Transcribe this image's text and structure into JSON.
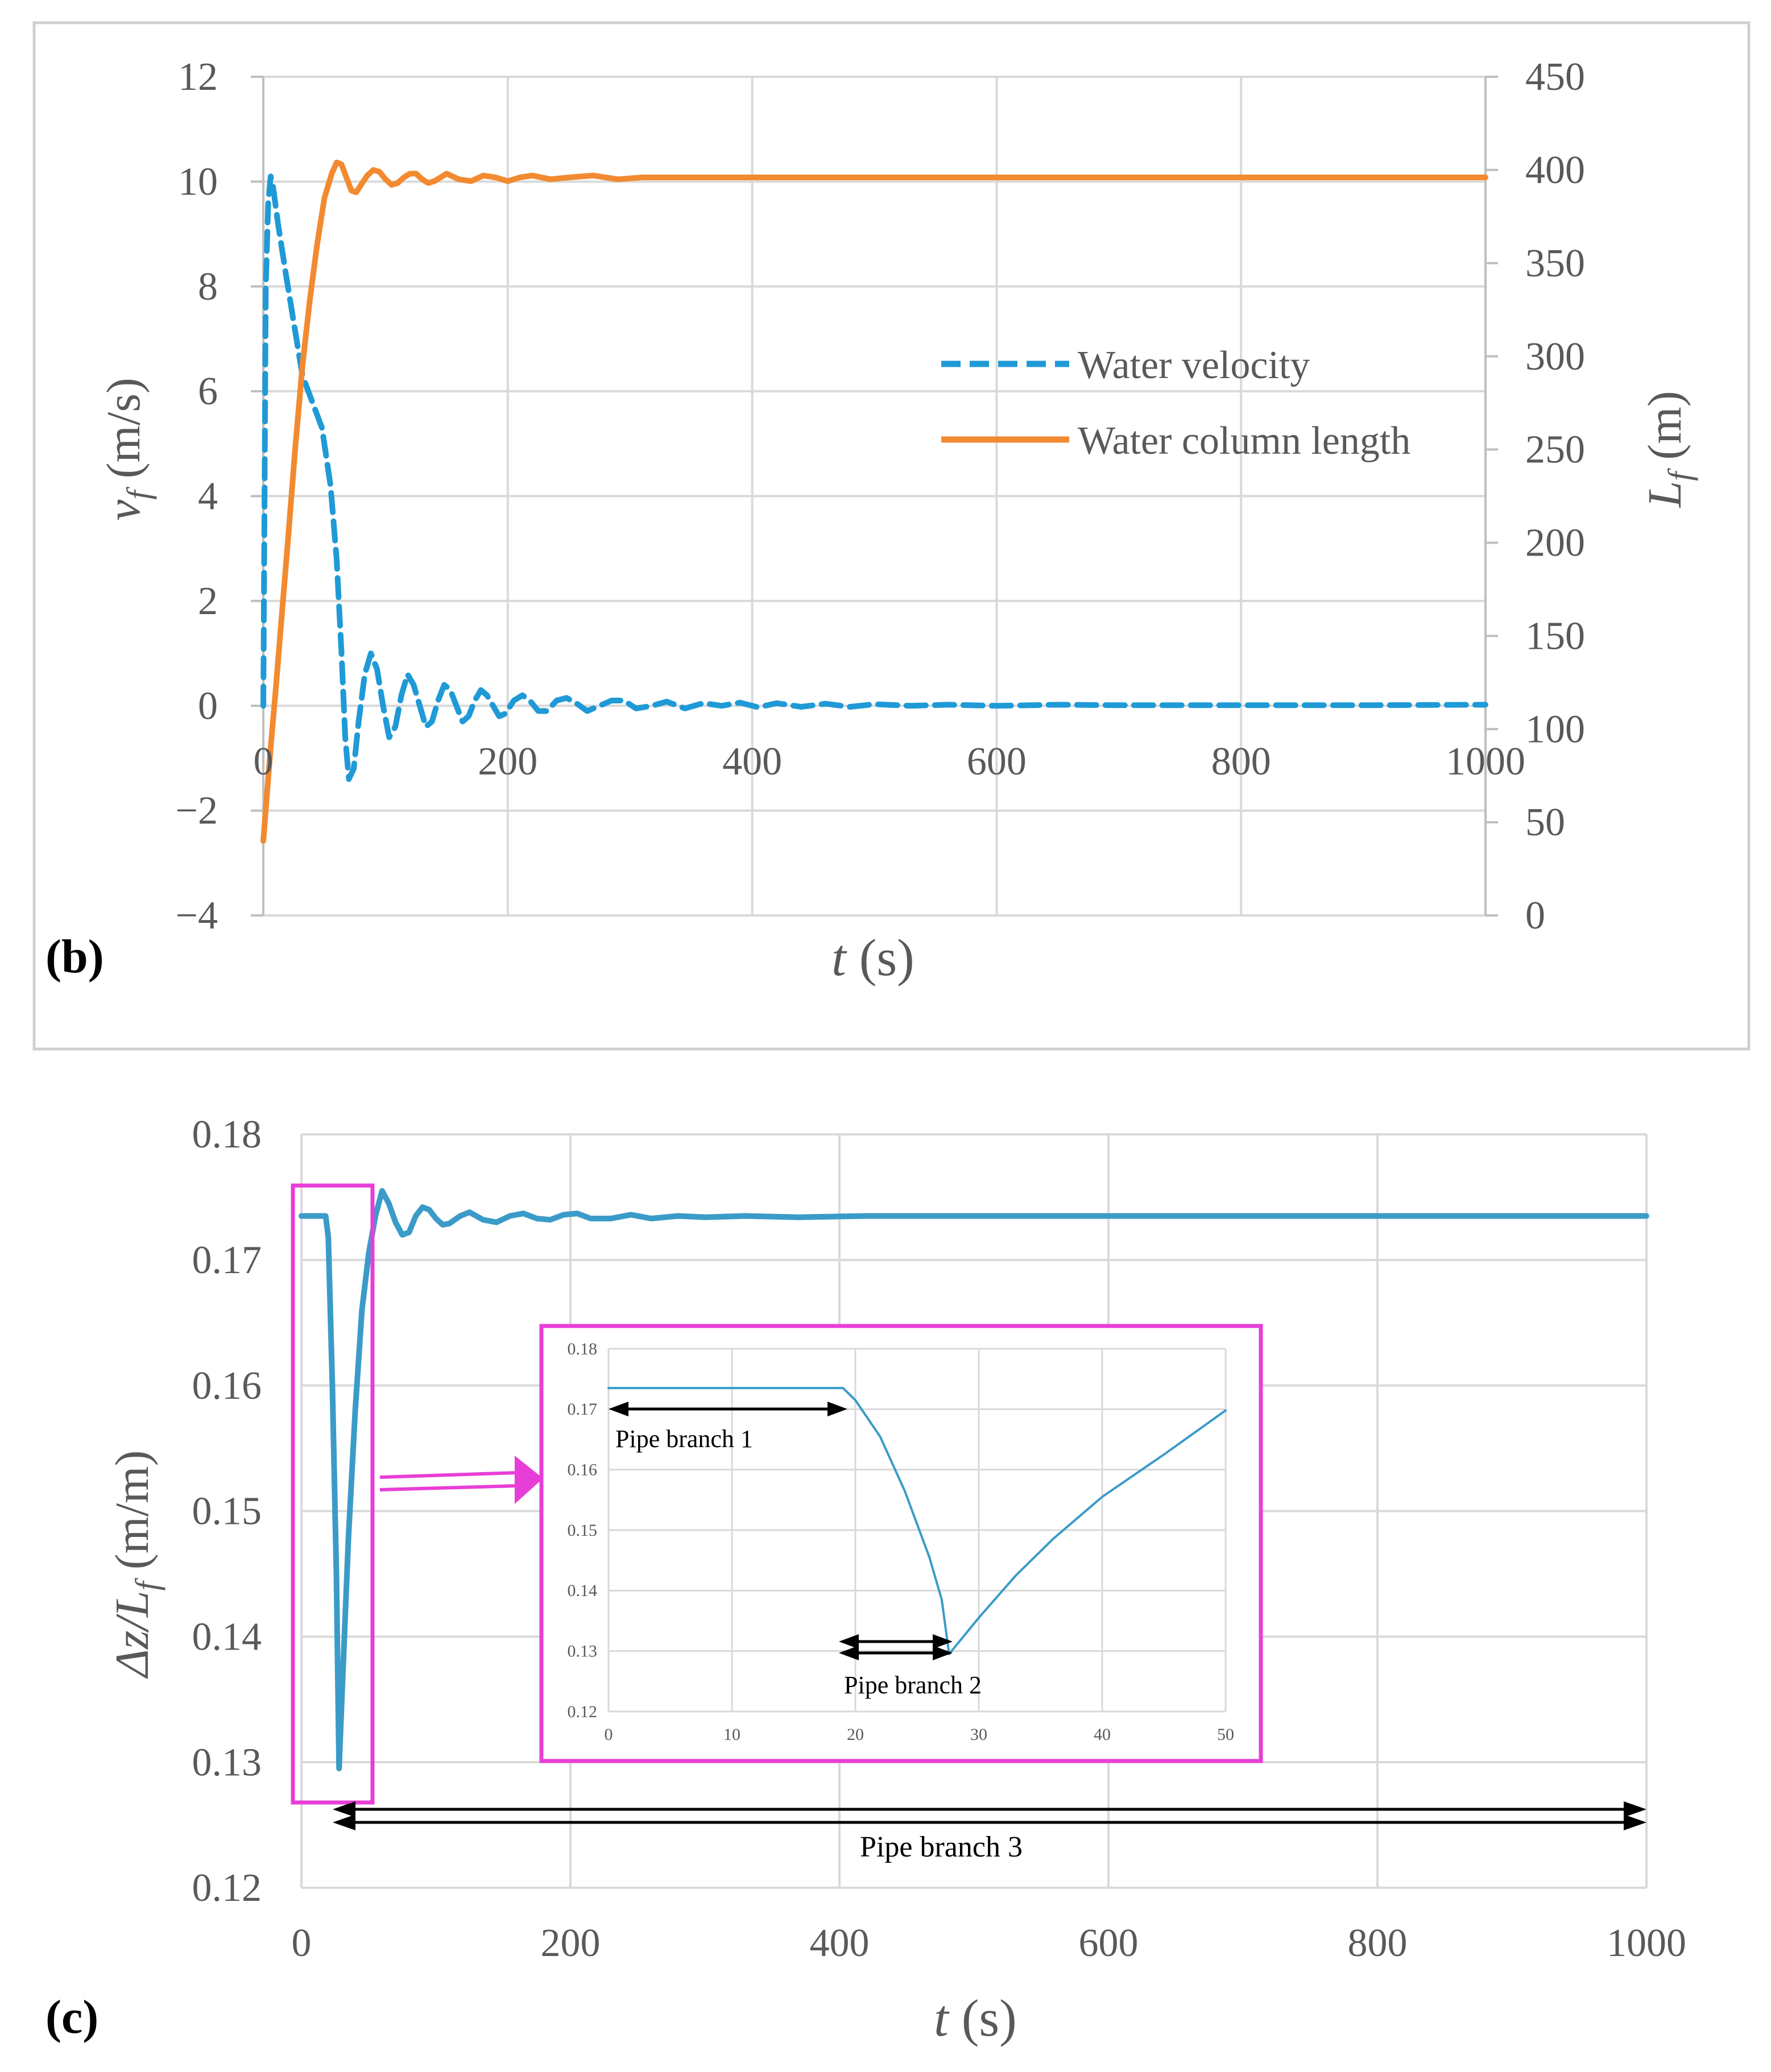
{
  "colors": {
    "velocity": "#1f9ad6",
    "length": "#f28a30",
    "ratio": "#3b9bc8",
    "magenta": "#e83ed8",
    "grid": "#d9d9d9",
    "text": "#595959"
  },
  "chart_data": [
    {
      "panel": "(b)",
      "type": "line",
      "xlabel_var": "t",
      "xlabel_unit": " (s)",
      "ylabel_var": "v",
      "ylabel_sub": "f",
      "ylabel_unit": " (m/s)",
      "y2label_var": "L",
      "y2label_sub": "f",
      "y2label_unit": " (m)",
      "xlim": [
        0,
        1000
      ],
      "ylim": [
        -4,
        12
      ],
      "y2lim": [
        0,
        450
      ],
      "x_ticks": [
        "0",
        "200",
        "400",
        "600",
        "800",
        "1000"
      ],
      "y_ticks": [
        "12",
        "10",
        "8",
        "6",
        "4",
        "2",
        "0",
        "−2",
        "−4"
      ],
      "y2_ticks": [
        "450",
        "400",
        "350",
        "300",
        "250",
        "200",
        "150",
        "100",
        "50",
        "0"
      ],
      "legend": [
        "Water velocity",
        "Water column length"
      ],
      "series": [
        {
          "name": "Water velocity",
          "axis": "left",
          "style": "dashed",
          "points": [
            [
              0,
              0
            ],
            [
              2,
              8
            ],
            [
              4,
              9.6
            ],
            [
              6,
              10.1
            ],
            [
              8,
              9.9
            ],
            [
              12,
              9.2
            ],
            [
              18,
              8.3
            ],
            [
              25,
              7.3
            ],
            [
              32,
              6.3
            ],
            [
              40,
              5.8
            ],
            [
              48,
              5.3
            ],
            [
              55,
              4.2
            ],
            [
              60,
              2.8
            ],
            [
              64,
              1.0
            ],
            [
              67,
              -0.6
            ],
            [
              70,
              -1.4
            ],
            [
              74,
              -1.2
            ],
            [
              78,
              -0.3
            ],
            [
              83,
              0.6
            ],
            [
              88,
              1.0
            ],
            [
              93,
              0.7
            ],
            [
              98,
              0.0
            ],
            [
              103,
              -0.6
            ],
            [
              108,
              -0.4
            ],
            [
              113,
              0.2
            ],
            [
              118,
              0.6
            ],
            [
              123,
              0.4
            ],
            [
              128,
              0.0
            ],
            [
              133,
              -0.4
            ],
            [
              138,
              -0.3
            ],
            [
              143,
              0.1
            ],
            [
              148,
              0.4
            ],
            [
              153,
              0.3
            ],
            [
              158,
              0.0
            ],
            [
              163,
              -0.3
            ],
            [
              168,
              -0.2
            ],
            [
              173,
              0.1
            ],
            [
              178,
              0.3
            ],
            [
              183,
              0.2
            ],
            [
              188,
              0.0
            ],
            [
              193,
              -0.2
            ],
            [
              198,
              -0.15
            ],
            [
              205,
              0.1
            ],
            [
              212,
              0.2
            ],
            [
              218,
              0.1
            ],
            [
              225,
              -0.1
            ],
            [
              232,
              -0.1
            ],
            [
              240,
              0.1
            ],
            [
              248,
              0.15
            ],
            [
              256,
              0.05
            ],
            [
              265,
              -0.1
            ],
            [
              275,
              0.0
            ],
            [
              285,
              0.1
            ],
            [
              295,
              0.1
            ],
            [
              305,
              -0.05
            ],
            [
              318,
              0.0
            ],
            [
              330,
              0.08
            ],
            [
              345,
              -0.05
            ],
            [
              360,
              0.05
            ],
            [
              375,
              0.0
            ],
            [
              390,
              0.06
            ],
            [
              405,
              -0.03
            ],
            [
              420,
              0.05
            ],
            [
              440,
              -0.02
            ],
            [
              460,
              0.04
            ],
            [
              480,
              -0.02
            ],
            [
              500,
              0.03
            ],
            [
              530,
              0.0
            ],
            [
              560,
              0.02
            ],
            [
              600,
              0.0
            ],
            [
              650,
              0.02
            ],
            [
              700,
              0.01
            ],
            [
              800,
              0.01
            ],
            [
              900,
              0.01
            ],
            [
              1000,
              0.02
            ]
          ]
        },
        {
          "name": "Water column length",
          "axis": "right",
          "style": "solid",
          "points": [
            [
              0,
              40
            ],
            [
              3,
              65
            ],
            [
              6,
              90
            ],
            [
              10,
              120
            ],
            [
              15,
              160
            ],
            [
              20,
              200
            ],
            [
              26,
              250
            ],
            [
              32,
              295
            ],
            [
              38,
              330
            ],
            [
              44,
              360
            ],
            [
              50,
              385
            ],
            [
              56,
              398
            ],
            [
              60,
              404
            ],
            [
              64,
              403
            ],
            [
              68,
              396
            ],
            [
              72,
              389
            ],
            [
              76,
              388
            ],
            [
              80,
              392
            ],
            [
              85,
              397
            ],
            [
              90,
              400
            ],
            [
              95,
              399
            ],
            [
              100,
              395
            ],
            [
              105,
              392
            ],
            [
              110,
              393
            ],
            [
              115,
              396
            ],
            [
              120,
              398
            ],
            [
              125,
              398
            ],
            [
              130,
              395
            ],
            [
              135,
              393
            ],
            [
              140,
              394
            ],
            [
              145,
              396
            ],
            [
              150,
              398
            ],
            [
              160,
              395
            ],
            [
              170,
              394
            ],
            [
              180,
              397
            ],
            [
              190,
              396
            ],
            [
              200,
              394
            ],
            [
              210,
              396
            ],
            [
              220,
              397
            ],
            [
              235,
              395
            ],
            [
              250,
              396
            ],
            [
              270,
              397
            ],
            [
              290,
              395
            ],
            [
              310,
              396
            ],
            [
              340,
              396
            ],
            [
              380,
              396
            ],
            [
              430,
              396
            ],
            [
              500,
              396
            ],
            [
              600,
              396
            ],
            [
              700,
              396
            ],
            [
              800,
              396
            ],
            [
              900,
              396
            ],
            [
              1000,
              396
            ]
          ]
        }
      ]
    },
    {
      "panel": "(c)",
      "type": "line",
      "xlabel_var": "t",
      "xlabel_unit": " (s)",
      "ylabel_var": "Δz/L",
      "ylabel_sub": "f",
      "ylabel_unit": " (m/m)",
      "xlim": [
        0,
        1000
      ],
      "ylim": [
        0.12,
        0.18
      ],
      "x_ticks": [
        "0",
        "200",
        "400",
        "600",
        "800",
        "1000"
      ],
      "y_ticks": [
        "0.18",
        "0.17",
        "0.16",
        "0.15",
        "0.14",
        "0.13",
        "0.12"
      ],
      "annotation": "Pipe branch 3",
      "series": [
        {
          "name": "Δz/Lf",
          "points": [
            [
              0,
              0.1735
            ],
            [
              18,
              0.1735
            ],
            [
              20,
              0.1718
            ],
            [
              23,
              0.16
            ],
            [
              26,
              0.145
            ],
            [
              28,
              0.1295
            ],
            [
              30,
              0.135
            ],
            [
              35,
              0.148
            ],
            [
              40,
              0.158
            ],
            [
              45,
              0.166
            ],
            [
              50,
              0.1705
            ],
            [
              55,
              0.1735
            ],
            [
              60,
              0.1755
            ],
            [
              65,
              0.1745
            ],
            [
              70,
              0.173
            ],
            [
              75,
              0.172
            ],
            [
              80,
              0.1722
            ],
            [
              85,
              0.1735
            ],
            [
              90,
              0.1742
            ],
            [
              95,
              0.174
            ],
            [
              100,
              0.1733
            ],
            [
              105,
              0.1728
            ],
            [
              110,
              0.1729
            ],
            [
              118,
              0.1735
            ],
            [
              125,
              0.1738
            ],
            [
              135,
              0.1732
            ],
            [
              145,
              0.173
            ],
            [
              155,
              0.1735
            ],
            [
              165,
              0.1737
            ],
            [
              175,
              0.1733
            ],
            [
              185,
              0.1732
            ],
            [
              195,
              0.1736
            ],
            [
              205,
              0.1737
            ],
            [
              215,
              0.1733
            ],
            [
              230,
              0.1733
            ],
            [
              245,
              0.1736
            ],
            [
              260,
              0.1733
            ],
            [
              280,
              0.1735
            ],
            [
              300,
              0.1734
            ],
            [
              330,
              0.1735
            ],
            [
              370,
              0.1734
            ],
            [
              420,
              0.1735
            ],
            [
              500,
              0.1735
            ],
            [
              600,
              0.1735
            ],
            [
              700,
              0.1735
            ],
            [
              800,
              0.1735
            ],
            [
              900,
              0.1735
            ],
            [
              1000,
              0.1735
            ]
          ]
        }
      ]
    },
    {
      "panel": "inset",
      "type": "line",
      "xlim": [
        0,
        50
      ],
      "ylim": [
        0.12,
        0.18
      ],
      "x_ticks": [
        "0",
        "10",
        "20",
        "30",
        "40",
        "50"
      ],
      "y_ticks": [
        "0.18",
        "0.17",
        "0.16",
        "0.15",
        "0.14",
        "0.13",
        "0.12"
      ],
      "annotations": [
        "Pipe branch 1",
        "Pipe branch 2"
      ],
      "series": [
        {
          "name": "Δz/Lf (zoom)",
          "points": [
            [
              0,
              0.1735
            ],
            [
              19,
              0.1735
            ],
            [
              20,
              0.1715
            ],
            [
              22,
              0.1655
            ],
            [
              24,
              0.1565
            ],
            [
              26,
              0.1455
            ],
            [
              27,
              0.1385
            ],
            [
              27.6,
              0.1295
            ],
            [
              28,
              0.1305
            ],
            [
              30,
              0.1355
            ],
            [
              33,
              0.1425
            ],
            [
              36,
              0.1485
            ],
            [
              40,
              0.1555
            ],
            [
              45,
              0.1625
            ],
            [
              50,
              0.1698
            ]
          ]
        }
      ]
    }
  ]
}
